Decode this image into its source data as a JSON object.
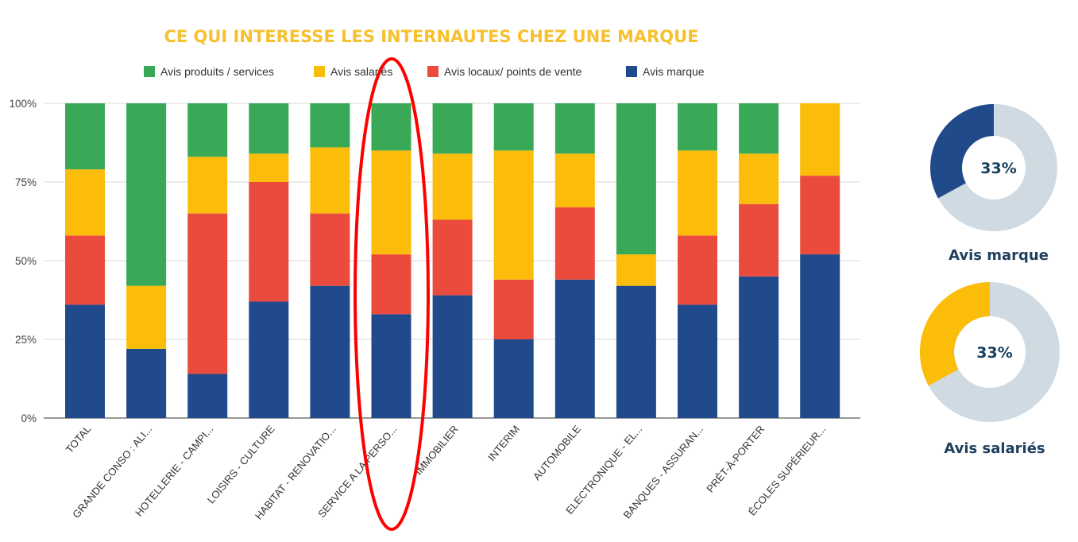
{
  "chart_data": [
    {
      "type": "bar",
      "stacked": true,
      "title": "CE QUI INTERESSE LES INTERNAUTES CHEZ UNE MARQUE",
      "legend_placement": "top",
      "grid": true,
      "ylim": [
        0,
        100
      ],
      "yticks": [
        "0%",
        "25%",
        "50%",
        "75%",
        "100%"
      ],
      "categories": [
        "TOTAL",
        "GRANDE CONSO : ALI...",
        "HOTELLERIE - CAMPI...",
        "LOISIRS - CULTURE",
        "HABITAT - RENOVATIO...",
        "SERVICE A LA PERSO...",
        "IMMOBILIER",
        "INTERIM",
        "AUTOMOBILE",
        "ELECTRONIQUE - EL...",
        "BANQUES - ASSURAN...",
        "PRÊT-À-PORTER",
        "ÉCOLES SUPÉRIEUR..."
      ],
      "series": [
        {
          "name": "Avis marque",
          "color": "#204a8c",
          "values": [
            36,
            22,
            14,
            37,
            42,
            33,
            39,
            25,
            44,
            42,
            36,
            45,
            52
          ]
        },
        {
          "name": "Avis locaux/ points de vente",
          "color": "#ea4b3d",
          "values": [
            22,
            0,
            51,
            38,
            23,
            19,
            24,
            19,
            23,
            0,
            22,
            23,
            25
          ]
        },
        {
          "name": "Avis salariés",
          "color": "#fbbd09",
          "values": [
            21,
            20,
            18,
            9,
            21,
            33,
            21,
            41,
            17,
            10,
            27,
            16,
            23
          ]
        },
        {
          "name": "Avis produits / services",
          "color": "#3aa957",
          "values": [
            21,
            58,
            17,
            16,
            14,
            15,
            16,
            15,
            16,
            48,
            15,
            16,
            0
          ]
        }
      ],
      "legend_order": [
        "Avis produits / services",
        "Avis salariés",
        "Avis locaux/ points de vente",
        "Avis marque"
      ],
      "annotation": {
        "type": "ellipse",
        "color": "#ff0000",
        "highlights": "SERVICE A LA PERSO..."
      }
    },
    {
      "type": "pie",
      "donut": true,
      "label": "Avis marque",
      "value_label": "33%",
      "value": 33,
      "color": "#214a8a",
      "rest_color": "#cfdae2"
    },
    {
      "type": "pie",
      "donut": true,
      "label": "Avis salariés",
      "value_label": "33%",
      "value": 33,
      "color": "#fbbd09",
      "rest_color": "#cfdae2"
    }
  ]
}
